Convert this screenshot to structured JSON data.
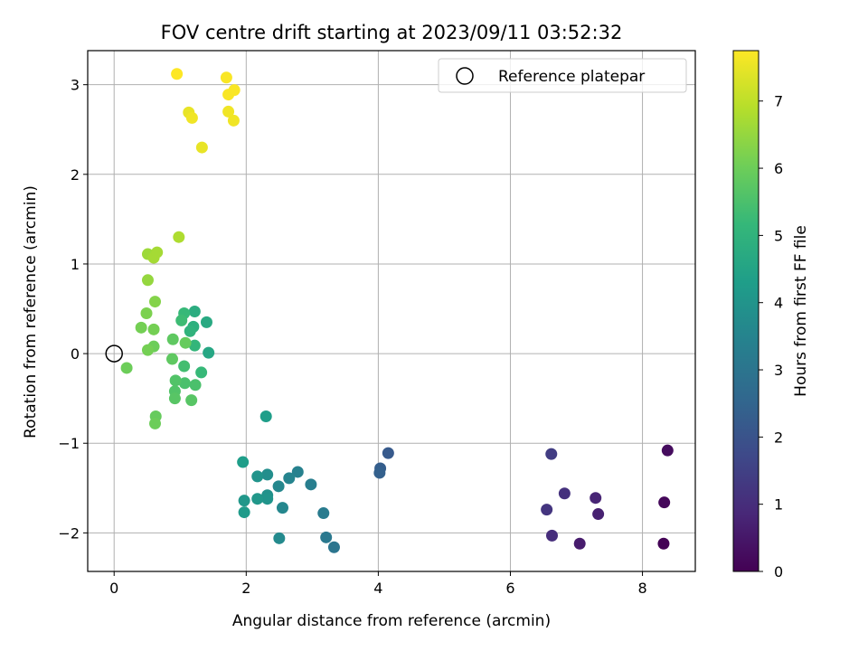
{
  "chart_data": {
    "type": "scatter",
    "title": "FOV centre drift starting at 2023/09/11 03:52:32",
    "xlabel": "Angular distance from reference (arcmin)",
    "ylabel": "Rotation from reference (arcmin)",
    "xlim": [
      -0.4,
      8.8
    ],
    "ylim": [
      -2.43,
      3.38
    ],
    "xticks": [
      0,
      2,
      4,
      6,
      8
    ],
    "yticks": [
      -2,
      -1,
      0,
      1,
      2,
      3
    ],
    "xtick_labels": [
      "0",
      "2",
      "4",
      "6",
      "8"
    ],
    "ytick_labels": [
      "−2",
      "−1",
      "0",
      "1",
      "2",
      "3"
    ],
    "grid": true,
    "legend": {
      "position": "top-right",
      "entries": [
        "Reference platepar"
      ]
    },
    "reference_point": {
      "x": 0,
      "y": 0
    },
    "colorbar": {
      "label": "Hours from first FF file",
      "colormap": "viridis",
      "range": [
        0,
        7.75
      ],
      "ticks": [
        0,
        1,
        2,
        3,
        4,
        5,
        6,
        7
      ],
      "tick_labels": [
        "0",
        "1",
        "2",
        "3",
        "4",
        "5",
        "6",
        "7"
      ]
    },
    "points": [
      {
        "x": 8.32,
        "y": -2.12,
        "c": 0.05
      },
      {
        "x": 8.33,
        "y": -1.66,
        "c": 0.15
      },
      {
        "x": 8.38,
        "y": -1.08,
        "c": 0.25
      },
      {
        "x": 7.05,
        "y": -2.12,
        "c": 0.6
      },
      {
        "x": 7.33,
        "y": -1.79,
        "c": 0.7
      },
      {
        "x": 7.29,
        "y": -1.61,
        "c": 0.8
      },
      {
        "x": 6.63,
        "y": -2.03,
        "c": 1.0
      },
      {
        "x": 6.82,
        "y": -1.56,
        "c": 1.1
      },
      {
        "x": 6.55,
        "y": -1.74,
        "c": 1.2
      },
      {
        "x": 6.62,
        "y": -1.12,
        "c": 1.4
      },
      {
        "x": 4.15,
        "y": -1.11,
        "c": 2.2
      },
      {
        "x": 4.03,
        "y": -1.28,
        "c": 2.3
      },
      {
        "x": 4.02,
        "y": -1.33,
        "c": 2.4
      },
      {
        "x": 3.33,
        "y": -2.16,
        "c": 3.0
      },
      {
        "x": 3.21,
        "y": -2.05,
        "c": 3.1
      },
      {
        "x": 3.17,
        "y": -1.78,
        "c": 3.2
      },
      {
        "x": 2.98,
        "y": -1.46,
        "c": 3.3
      },
      {
        "x": 2.78,
        "y": -1.32,
        "c": 3.4
      },
      {
        "x": 2.65,
        "y": -1.39,
        "c": 3.5
      },
      {
        "x": 2.49,
        "y": -1.48,
        "c": 3.6
      },
      {
        "x": 2.55,
        "y": -1.72,
        "c": 3.6
      },
      {
        "x": 2.5,
        "y": -2.06,
        "c": 3.7
      },
      {
        "x": 2.32,
        "y": -1.35,
        "c": 3.8
      },
      {
        "x": 2.32,
        "y": -1.58,
        "c": 3.9
      },
      {
        "x": 2.32,
        "y": -1.62,
        "c": 4.0
      },
      {
        "x": 2.17,
        "y": -1.37,
        "c": 4.0
      },
      {
        "x": 2.17,
        "y": -1.62,
        "c": 4.1
      },
      {
        "x": 1.97,
        "y": -1.64,
        "c": 4.1
      },
      {
        "x": 1.97,
        "y": -1.77,
        "c": 4.2
      },
      {
        "x": 1.95,
        "y": -1.21,
        "c": 4.3
      },
      {
        "x": 2.3,
        "y": -0.7,
        "c": 4.3
      },
      {
        "x": 1.43,
        "y": 0.01,
        "c": 4.6
      },
      {
        "x": 1.4,
        "y": 0.35,
        "c": 4.7
      },
      {
        "x": 1.22,
        "y": 0.47,
        "c": 4.8
      },
      {
        "x": 1.2,
        "y": 0.3,
        "c": 4.9
      },
      {
        "x": 1.15,
        "y": 0.25,
        "c": 5.0
      },
      {
        "x": 1.22,
        "y": 0.09,
        "c": 5.1
      },
      {
        "x": 1.32,
        "y": -0.21,
        "c": 5.2
      },
      {
        "x": 1.06,
        "y": 0.45,
        "c": 5.2
      },
      {
        "x": 1.02,
        "y": 0.37,
        "c": 5.3
      },
      {
        "x": 1.06,
        "y": -0.14,
        "c": 5.4
      },
      {
        "x": 1.23,
        "y": -0.35,
        "c": 5.5
      },
      {
        "x": 1.07,
        "y": -0.33,
        "c": 5.5
      },
      {
        "x": 0.93,
        "y": -0.3,
        "c": 5.6
      },
      {
        "x": 0.92,
        "y": -0.42,
        "c": 5.6
      },
      {
        "x": 0.92,
        "y": -0.5,
        "c": 5.7
      },
      {
        "x": 1.17,
        "y": -0.52,
        "c": 5.7
      },
      {
        "x": 0.88,
        "y": -0.06,
        "c": 5.8
      },
      {
        "x": 0.89,
        "y": 0.16,
        "c": 5.8
      },
      {
        "x": 1.08,
        "y": 0.12,
        "c": 5.9
      },
      {
        "x": 0.63,
        "y": -0.7,
        "c": 5.9
      },
      {
        "x": 0.62,
        "y": -0.78,
        "c": 6.0
      },
      {
        "x": 0.19,
        "y": -0.16,
        "c": 6.0
      },
      {
        "x": 0.6,
        "y": 0.08,
        "c": 6.0
      },
      {
        "x": 0.51,
        "y": 0.04,
        "c": 6.1
      },
      {
        "x": 0.41,
        "y": 0.29,
        "c": 6.1
      },
      {
        "x": 0.6,
        "y": 0.27,
        "c": 6.1
      },
      {
        "x": 0.49,
        "y": 0.45,
        "c": 6.2
      },
      {
        "x": 0.62,
        "y": 0.58,
        "c": 6.3
      },
      {
        "x": 0.51,
        "y": 0.82,
        "c": 6.5
      },
      {
        "x": 0.51,
        "y": 1.11,
        "c": 6.6
      },
      {
        "x": 0.6,
        "y": 1.07,
        "c": 6.7
      },
      {
        "x": 0.65,
        "y": 1.13,
        "c": 6.7
      },
      {
        "x": 0.98,
        "y": 1.3,
        "c": 6.8
      },
      {
        "x": 1.33,
        "y": 2.3,
        "c": 7.5
      },
      {
        "x": 1.13,
        "y": 2.69,
        "c": 7.5
      },
      {
        "x": 1.18,
        "y": 2.63,
        "c": 7.6
      },
      {
        "x": 1.81,
        "y": 2.6,
        "c": 7.6
      },
      {
        "x": 1.73,
        "y": 2.7,
        "c": 7.6
      },
      {
        "x": 1.73,
        "y": 2.89,
        "c": 7.7
      },
      {
        "x": 1.82,
        "y": 2.94,
        "c": 7.7
      },
      {
        "x": 1.7,
        "y": 3.08,
        "c": 7.7
      },
      {
        "x": 0.95,
        "y": 3.12,
        "c": 7.75
      }
    ]
  }
}
